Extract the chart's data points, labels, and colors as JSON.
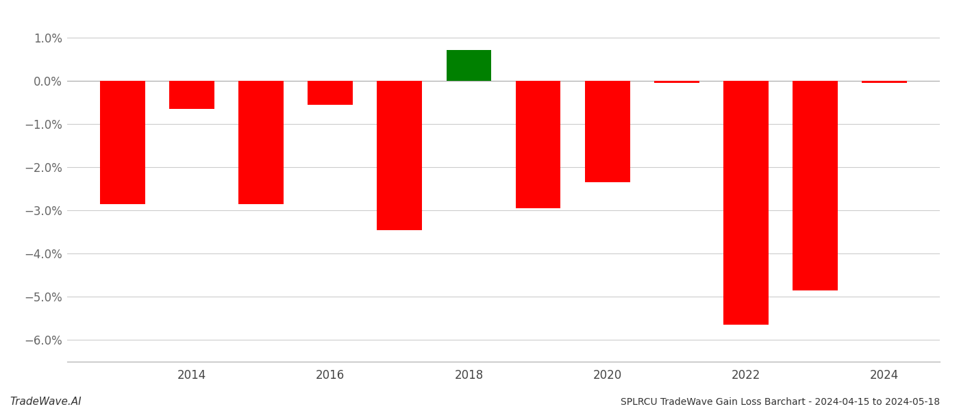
{
  "years": [
    2013,
    2014,
    2015,
    2016,
    2017,
    2018,
    2019,
    2020,
    2021,
    2022,
    2023,
    2024
  ],
  "values": [
    -2.85,
    -0.65,
    -2.85,
    -0.55,
    -3.45,
    0.72,
    -2.95,
    -2.35,
    -0.05,
    -5.65,
    -4.85,
    -0.05
  ],
  "bar_colors": [
    "#ff0000",
    "#ff0000",
    "#ff0000",
    "#ff0000",
    "#ff0000",
    "#008000",
    "#ff0000",
    "#ff0000",
    "#ff0000",
    "#ff0000",
    "#ff0000",
    "#ff0000"
  ],
  "title": "SPLRCU TradeWave Gain Loss Barchart - 2024-04-15 to 2024-05-18",
  "watermark": "TradeWave.AI",
  "ylim": [
    -6.5,
    1.4
  ],
  "ytick_values": [
    -6.0,
    -5.0,
    -4.0,
    -3.0,
    -2.0,
    -1.0,
    0.0,
    1.0
  ],
  "ytick_labels": [
    "−6.0%",
    "−5.0%",
    "−4.0%",
    "−3.0%",
    "−2.0%",
    "−1.0%",
    "0.0%",
    "1.0%"
  ],
  "xtick_years": [
    2014,
    2016,
    2018,
    2020,
    2022,
    2024
  ],
  "background_color": "#ffffff",
  "grid_color": "#cccccc",
  "bar_width": 0.65,
  "figsize": [
    14.0,
    6.0
  ],
  "dpi": 100,
  "title_fontsize": 10,
  "watermark_fontsize": 11,
  "tick_fontsize": 12
}
